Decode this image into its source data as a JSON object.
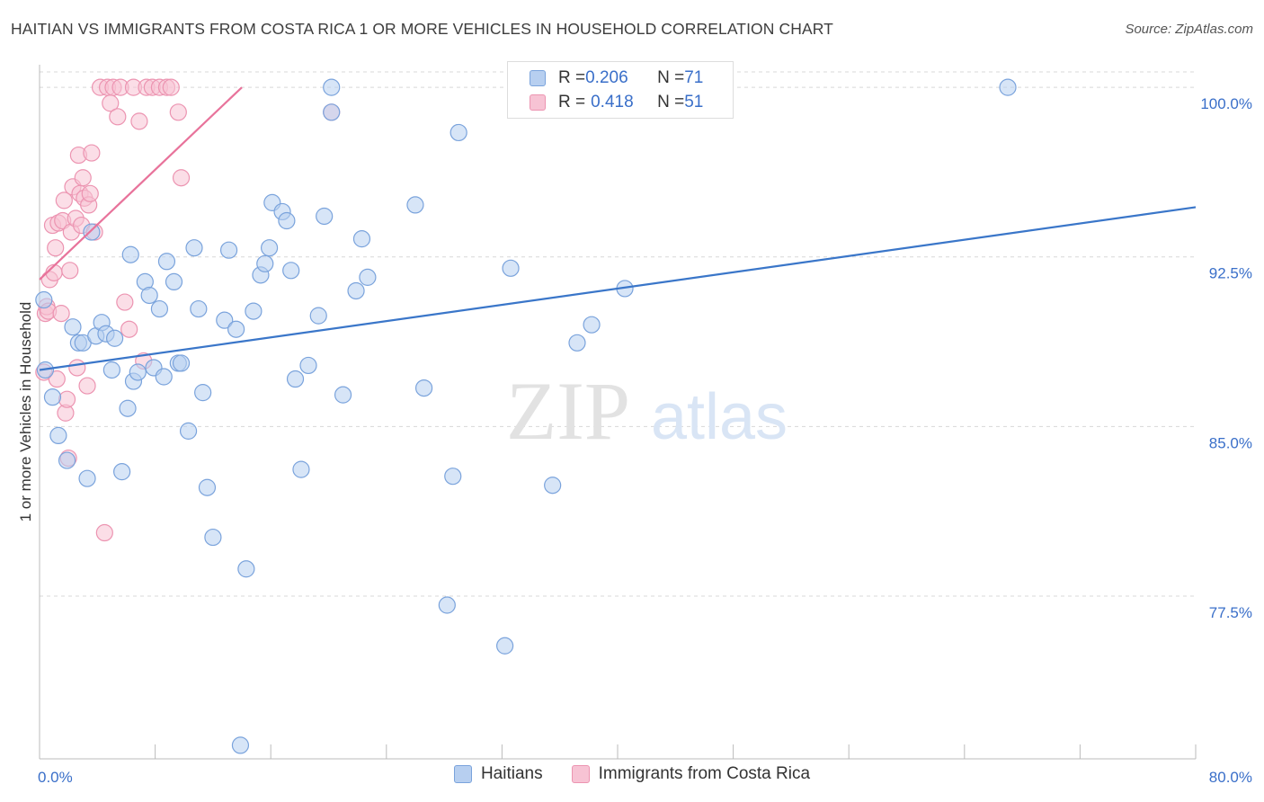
{
  "title": "HAITIAN VS IMMIGRANTS FROM COSTA RICA 1 OR MORE VEHICLES IN HOUSEHOLD CORRELATION CHART",
  "source": "Source: ZipAtlas.com",
  "watermark": {
    "zip": "ZIP",
    "atlas": "atlas"
  },
  "legend": {
    "haitians": {
      "r_label": "R = ",
      "r_value": "0.206",
      "n_label": "N = ",
      "n_value": "71"
    },
    "costa_rica": {
      "r_label": "R = ",
      "r_value": "0.418",
      "n_label": "N = ",
      "n_value": "51"
    }
  },
  "colors": {
    "blue_fill": "#b7cff0",
    "blue_stroke": "#7aa3dc",
    "blue_line": "#3a76c9",
    "pink_fill": "#f7c3d4",
    "pink_stroke": "#ec94b1",
    "pink_line": "#e8739b",
    "axis_text": "#3a6fc9",
    "grid": "#d8d8d8"
  },
  "chart_data": {
    "type": "scatter",
    "title": "HAITIAN VS IMMIGRANTS FROM COSTA RICA 1 OR MORE VEHICLES IN HOUSEHOLD CORRELATION CHART",
    "xlabel": "",
    "ylabel": "1 or more Vehicles in Household",
    "xlim": [
      0,
      80
    ],
    "ylim": [
      70.3,
      101
    ],
    "x_tick_labels": [
      "0.0%",
      "80.0%"
    ],
    "y_ticks": [
      77.5,
      85.0,
      92.5,
      100.0
    ],
    "y_tick_labels": [
      "77.5%",
      "85.0%",
      "92.5%",
      "100.0%"
    ],
    "series": [
      {
        "name": "Haitians",
        "color": "blue",
        "trend": {
          "x0": 0,
          "y0": 87.5,
          "x1": 80,
          "y1": 94.7
        },
        "points": [
          [
            0.3,
            90.6
          ],
          [
            0.4,
            87.5
          ],
          [
            0.9,
            86.3
          ],
          [
            1.3,
            84.6
          ],
          [
            1.9,
            83.5
          ],
          [
            2.3,
            89.4
          ],
          [
            2.7,
            88.7
          ],
          [
            3.0,
            88.7
          ],
          [
            3.3,
            82.7
          ],
          [
            3.6,
            93.6
          ],
          [
            3.9,
            89.0
          ],
          [
            4.3,
            89.6
          ],
          [
            4.6,
            89.1
          ],
          [
            5.0,
            87.5
          ],
          [
            5.2,
            88.9
          ],
          [
            5.7,
            83.0
          ],
          [
            6.1,
            85.8
          ],
          [
            6.3,
            92.6
          ],
          [
            6.5,
            87.0
          ],
          [
            6.8,
            87.4
          ],
          [
            7.3,
            91.4
          ],
          [
            7.6,
            90.8
          ],
          [
            7.9,
            87.6
          ],
          [
            8.3,
            90.2
          ],
          [
            8.6,
            87.2
          ],
          [
            8.8,
            92.3
          ],
          [
            9.3,
            91.4
          ],
          [
            9.6,
            87.8
          ],
          [
            9.8,
            87.8
          ],
          [
            10.3,
            84.8
          ],
          [
            10.7,
            92.9
          ],
          [
            11.0,
            90.2
          ],
          [
            11.3,
            86.5
          ],
          [
            11.6,
            82.3
          ],
          [
            12.0,
            80.1
          ],
          [
            12.8,
            89.7
          ],
          [
            13.1,
            92.8
          ],
          [
            13.6,
            89.3
          ],
          [
            13.9,
            70.9
          ],
          [
            14.3,
            78.7
          ],
          [
            14.8,
            90.1
          ],
          [
            15.3,
            91.7
          ],
          [
            15.6,
            92.2
          ],
          [
            15.9,
            92.9
          ],
          [
            16.1,
            94.9
          ],
          [
            16.8,
            94.5
          ],
          [
            17.1,
            94.1
          ],
          [
            17.4,
            91.9
          ],
          [
            17.7,
            87.1
          ],
          [
            18.1,
            83.1
          ],
          [
            18.6,
            87.7
          ],
          [
            19.3,
            89.9
          ],
          [
            19.7,
            94.3
          ],
          [
            20.2,
            100.0
          ],
          [
            21.0,
            86.4
          ],
          [
            21.9,
            91.0
          ],
          [
            22.3,
            93.3
          ],
          [
            22.7,
            91.6
          ],
          [
            26.0,
            94.8
          ],
          [
            26.6,
            86.7
          ],
          [
            28.2,
            77.1
          ],
          [
            28.6,
            82.8
          ],
          [
            29.0,
            98.0
          ],
          [
            32.2,
            75.3
          ],
          [
            32.6,
            92.0
          ],
          [
            35.5,
            82.4
          ],
          [
            37.2,
            88.7
          ],
          [
            38.2,
            89.5
          ],
          [
            40.5,
            91.1
          ],
          [
            67.0,
            100.0
          ],
          [
            20.2,
            98.9
          ]
        ]
      },
      {
        "name": "Immigrants from Costa Rica",
        "color": "pink",
        "trend": {
          "x0": 0,
          "y0": 91.5,
          "x1": 14.0,
          "y1": 100.0
        },
        "points": [
          [
            0.3,
            87.4
          ],
          [
            0.4,
            90.0
          ],
          [
            0.5,
            90.3
          ],
          [
            0.6,
            90.1
          ],
          [
            0.7,
            91.5
          ],
          [
            0.9,
            93.9
          ],
          [
            1.0,
            91.8
          ],
          [
            1.1,
            92.9
          ],
          [
            1.2,
            87.1
          ],
          [
            1.3,
            94.0
          ],
          [
            1.5,
            90.0
          ],
          [
            1.6,
            94.1
          ],
          [
            1.7,
            95.0
          ],
          [
            1.8,
            85.6
          ],
          [
            1.9,
            86.2
          ],
          [
            2.0,
            83.6
          ],
          [
            2.1,
            91.9
          ],
          [
            2.2,
            93.6
          ],
          [
            2.3,
            95.6
          ],
          [
            2.5,
            94.2
          ],
          [
            2.6,
            87.6
          ],
          [
            2.7,
            97.0
          ],
          [
            2.8,
            95.3
          ],
          [
            2.9,
            93.9
          ],
          [
            3.0,
            96.0
          ],
          [
            3.1,
            95.1
          ],
          [
            3.3,
            86.8
          ],
          [
            3.4,
            94.8
          ],
          [
            3.5,
            95.3
          ],
          [
            3.6,
            97.1
          ],
          [
            3.8,
            93.6
          ],
          [
            4.2,
            100.0
          ],
          [
            4.5,
            80.3
          ],
          [
            4.7,
            100.0
          ],
          [
            4.9,
            99.3
          ],
          [
            5.1,
            100.0
          ],
          [
            5.4,
            98.7
          ],
          [
            5.6,
            100.0
          ],
          [
            5.9,
            90.5
          ],
          [
            6.2,
            89.3
          ],
          [
            6.5,
            100.0
          ],
          [
            6.9,
            98.5
          ],
          [
            7.2,
            87.9
          ],
          [
            7.4,
            100.0
          ],
          [
            7.8,
            100.0
          ],
          [
            8.3,
            100.0
          ],
          [
            8.8,
            100.0
          ],
          [
            9.1,
            100.0
          ],
          [
            9.6,
            98.9
          ],
          [
            9.8,
            96.0
          ],
          [
            20.2,
            98.9
          ]
        ]
      }
    ]
  },
  "bottom_legend": {
    "haitians": "Haitians",
    "costa_rica": "Immigrants from Costa Rica"
  }
}
